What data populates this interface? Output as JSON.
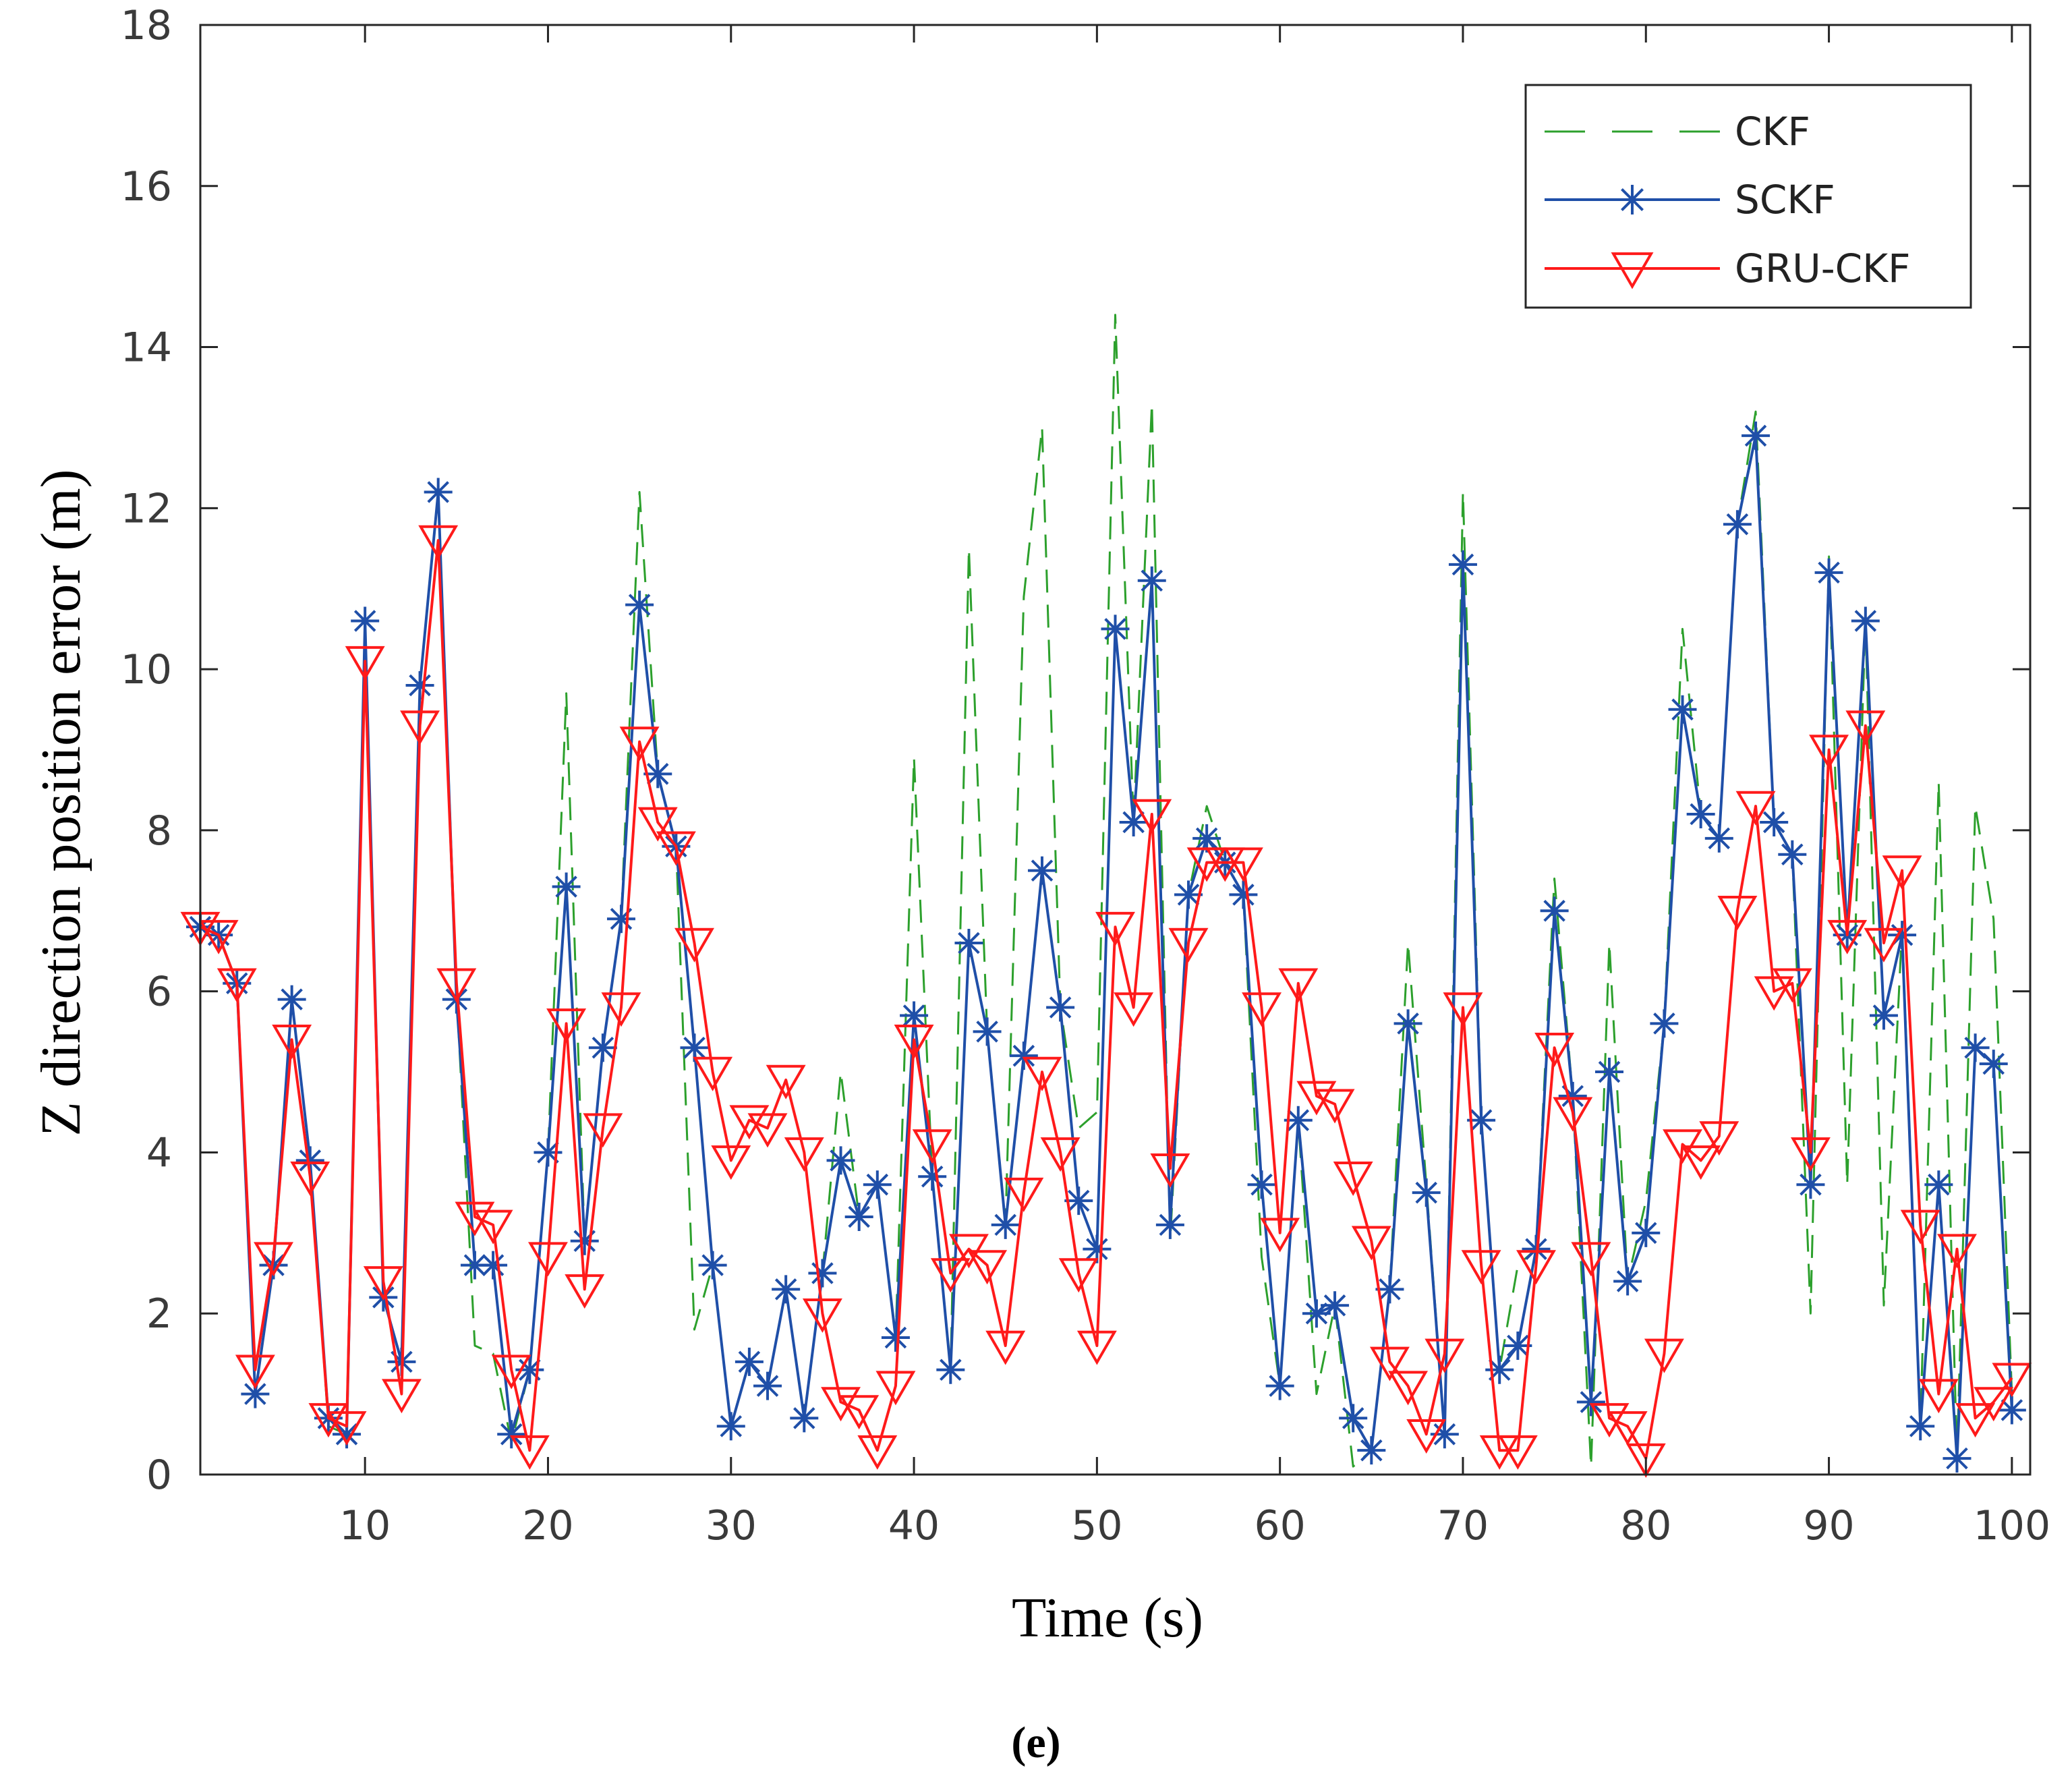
{
  "chart_data": {
    "type": "line",
    "title": "",
    "xlabel": "Time (s)",
    "ylabel": "Z direction position error (m)",
    "xlim": [
      1,
      101
    ],
    "ylim": [
      0,
      18
    ],
    "xticks": [
      10,
      20,
      30,
      40,
      50,
      60,
      70,
      80,
      90,
      100
    ],
    "yticks": [
      0,
      2,
      4,
      6,
      8,
      10,
      12,
      14,
      16,
      18
    ],
    "grid": false,
    "legend_position": "top-right",
    "caption": "(e)",
    "x": [
      1,
      2,
      3,
      4,
      5,
      6,
      7,
      8,
      9,
      10,
      11,
      12,
      13,
      14,
      15,
      16,
      17,
      18,
      19,
      20,
      21,
      22,
      23,
      24,
      25,
      26,
      27,
      28,
      29,
      30,
      31,
      32,
      33,
      34,
      35,
      36,
      37,
      38,
      39,
      40,
      41,
      42,
      43,
      44,
      45,
      46,
      47,
      48,
      49,
      50,
      51,
      52,
      53,
      54,
      55,
      56,
      57,
      58,
      59,
      60,
      61,
      62,
      63,
      64,
      65,
      66,
      67,
      68,
      69,
      70,
      71,
      72,
      73,
      74,
      75,
      76,
      77,
      78,
      79,
      80,
      81,
      82,
      83,
      84,
      85,
      86,
      87,
      88,
      89,
      90,
      91,
      92,
      93,
      94,
      95,
      96,
      97,
      98,
      99,
      100
    ],
    "series": [
      {
        "name": "CKF",
        "color": "#2ca02c",
        "style": "dashed",
        "marker": "none",
        "values": [
          6.8,
          6.7,
          6.1,
          1.0,
          2.6,
          5.9,
          3.9,
          0.6,
          0.5,
          10.6,
          2.2,
          1.4,
          9.8,
          12.2,
          6.0,
          1.6,
          1.5,
          0.4,
          1.3,
          4.0,
          9.7,
          2.9,
          5.3,
          6.9,
          12.2,
          8.7,
          7.8,
          1.8,
          2.6,
          0.6,
          1.4,
          1.1,
          2.3,
          0.7,
          2.5,
          5.0,
          3.2,
          3.6,
          1.7,
          8.9,
          3.7,
          1.3,
          11.5,
          5.5,
          3.1,
          10.9,
          13.0,
          5.8,
          4.3,
          4.5,
          14.4,
          8.1,
          13.3,
          2.9,
          7.2,
          8.3,
          7.6,
          7.2,
          2.7,
          1.1,
          4.4,
          1.0,
          2.1,
          0.1,
          0.3,
          2.3,
          6.6,
          3.6,
          0.5,
          12.2,
          4.4,
          1.3,
          2.6,
          2.8,
          7.4,
          4.7,
          0.1,
          6.6,
          2.4,
          3.4,
          5.6,
          10.5,
          8.2,
          7.9,
          11.8,
          13.2,
          8.1,
          7.7,
          2.0,
          11.4,
          3.6,
          10.6,
          2.1,
          6.8,
          0.6,
          8.6,
          0.2,
          8.3,
          6.9,
          1.0
        ]
      },
      {
        "name": "SCKF",
        "color": "#1f4fa8",
        "style": "solid",
        "marker": "asterisk",
        "values": [
          6.8,
          6.7,
          6.1,
          1.0,
          2.6,
          5.9,
          3.9,
          0.7,
          0.5,
          10.6,
          2.2,
          1.4,
          9.8,
          12.2,
          5.9,
          2.6,
          2.6,
          0.5,
          1.3,
          4.0,
          7.3,
          2.9,
          5.3,
          6.9,
          10.8,
          8.7,
          7.8,
          5.3,
          2.6,
          0.6,
          1.4,
          1.1,
          2.3,
          0.7,
          2.5,
          3.9,
          3.2,
          3.6,
          1.7,
          5.7,
          3.7,
          1.3,
          6.6,
          5.5,
          3.1,
          5.2,
          7.5,
          5.8,
          3.4,
          2.8,
          10.5,
          8.1,
          11.1,
          3.1,
          7.2,
          7.9,
          7.6,
          7.2,
          3.6,
          1.1,
          4.4,
          2.0,
          2.1,
          0.7,
          0.3,
          2.3,
          5.6,
          3.5,
          0.5,
          11.3,
          4.4,
          1.3,
          1.6,
          2.8,
          7.0,
          4.7,
          0.9,
          5.0,
          2.4,
          3.0,
          5.6,
          9.5,
          8.2,
          7.9,
          11.8,
          12.9,
          8.1,
          7.7,
          3.6,
          11.2,
          6.7,
          10.6,
          5.7,
          6.7,
          0.6,
          3.6,
          0.2,
          5.3,
          5.1,
          0.8
        ]
      },
      {
        "name": "GRU-CKF",
        "color": "#ff1a1a",
        "style": "solid",
        "marker": "triangle-down",
        "values": [
          6.8,
          6.7,
          6.1,
          1.3,
          2.7,
          5.4,
          3.7,
          0.7,
          0.6,
          10.1,
          2.4,
          1.0,
          9.3,
          11.6,
          6.1,
          3.2,
          3.1,
          1.3,
          0.3,
          2.7,
          5.6,
          2.3,
          4.3,
          5.8,
          9.1,
          8.1,
          7.8,
          6.6,
          5.0,
          3.9,
          4.4,
          4.3,
          4.9,
          4.0,
          2.0,
          0.9,
          0.8,
          0.3,
          1.1,
          5.4,
          4.1,
          2.5,
          2.8,
          2.6,
          1.6,
          3.5,
          5.0,
          4.0,
          2.5,
          1.6,
          6.8,
          5.8,
          8.2,
          3.8,
          6.6,
          7.6,
          7.6,
          7.6,
          5.8,
          3.0,
          6.1,
          4.7,
          4.6,
          3.7,
          2.9,
          1.4,
          1.1,
          0.5,
          1.5,
          5.8,
          2.6,
          0.3,
          0.3,
          2.6,
          5.3,
          4.5,
          2.7,
          0.7,
          0.6,
          0.2,
          1.5,
          4.1,
          3.9,
          4.2,
          7.0,
          8.3,
          6.0,
          6.1,
          4.0,
          9.0,
          6.7,
          9.3,
          6.6,
          7.5,
          3.1,
          1.0,
          2.8,
          0.7,
          0.9,
          1.2
        ]
      }
    ]
  }
}
